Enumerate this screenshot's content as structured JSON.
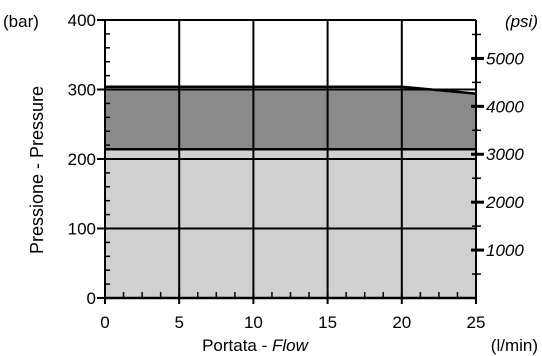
{
  "chart_data": {
    "type": "area",
    "x_label_parts": [
      "Portata - ",
      "Flow"
    ],
    "x_unit": "(l/min)",
    "y_label": "Pressione - Pressure",
    "y_unit_left": "(bar)",
    "y_unit_right": "(psi)",
    "xlim": [
      0,
      25
    ],
    "ylim": [
      0,
      400
    ],
    "x_ticks": [
      0,
      5,
      10,
      15,
      20,
      25
    ],
    "x_tick_labels": [
      "0",
      "5",
      "10",
      "15",
      "20",
      "25"
    ],
    "y_ticks": [
      0,
      100,
      200,
      300,
      400
    ],
    "y_tick_labels": [
      "0",
      "100",
      "200",
      "300",
      "400"
    ],
    "y2_ticks_psi": [
      1000,
      2000,
      3000,
      4000,
      5000
    ],
    "y2_tick_labels": [
      "1000",
      "2000",
      "3000",
      "4000",
      "5000"
    ],
    "grid": true,
    "series": [
      {
        "x": [
          0,
          20,
          25
        ],
        "y": [
          304,
          304,
          294
        ],
        "color": "#8a8a8a"
      },
      {
        "x": [
          0,
          25
        ],
        "y": [
          214,
          214
        ],
        "color": "#d0d0d0"
      }
    ]
  }
}
